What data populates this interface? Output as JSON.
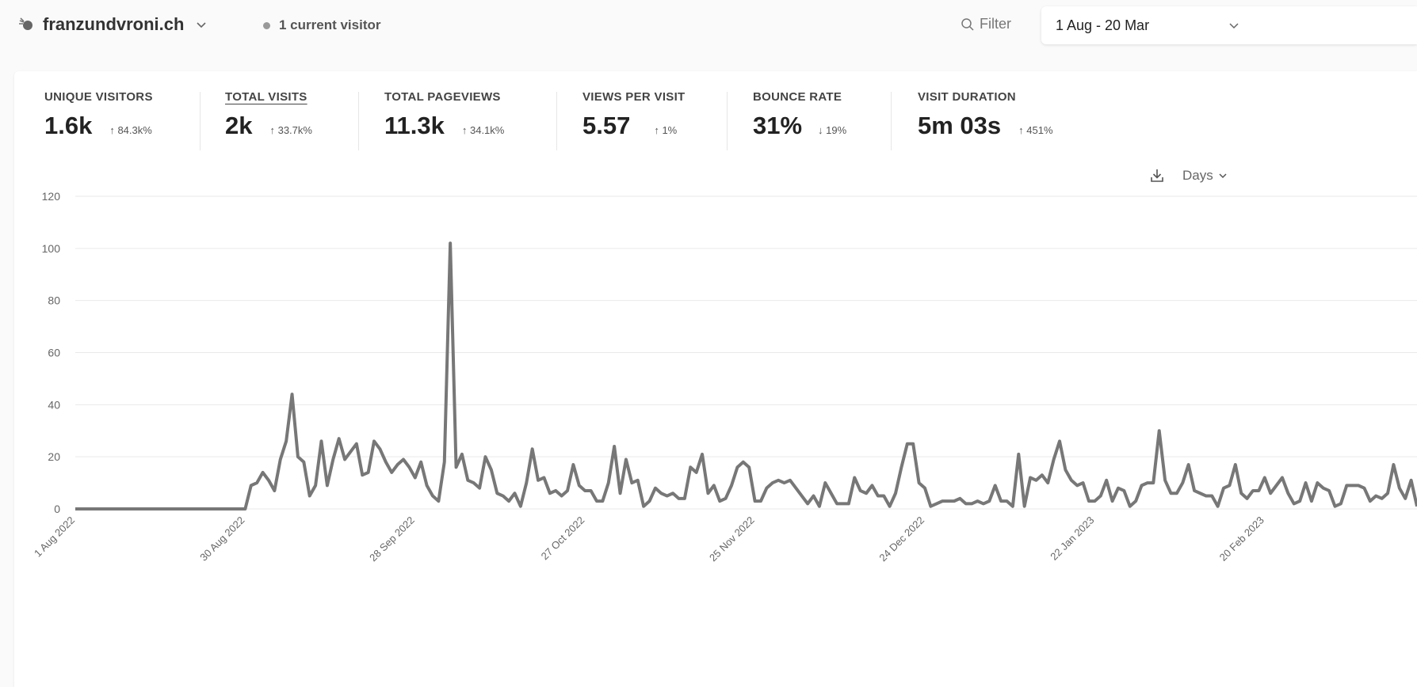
{
  "header": {
    "site_name": "franzundvroni.ch",
    "current_visitors": "1 current visitor",
    "filter_label": "Filter",
    "date_range": "1 Aug - 20 Mar"
  },
  "stats": [
    {
      "label": "UNIQUE VISITORS",
      "value": "1.6k",
      "change": "↑ 84.3k%"
    },
    {
      "label": "TOTAL VISITS",
      "value": "2k",
      "change": "↑ 33.7k%",
      "active": true
    },
    {
      "label": "TOTAL PAGEVIEWS",
      "value": "11.3k",
      "change": "↑ 34.1k%"
    },
    {
      "label": "VIEWS PER VISIT",
      "value": "5.57",
      "change": "↑ 1%"
    },
    {
      "label": "BOUNCE RATE",
      "value": "31%",
      "change": "↓ 19%"
    },
    {
      "label": "VISIT DURATION",
      "value": "5m 03s",
      "change": "↑ 451%"
    }
  ],
  "chart_controls": {
    "interval": "Days"
  },
  "colors": {
    "line": "#777777",
    "grid": "#e9e9e9"
  },
  "chart_data": {
    "type": "line",
    "title": "",
    "xlabel": "",
    "ylabel": "",
    "ylim": [
      0,
      120
    ],
    "yticks": [
      "0",
      "20",
      "40",
      "60",
      "80",
      "100",
      "120"
    ],
    "x_tick_labels": [
      "1 Aug 2022",
      "30 Aug 2022",
      "28 Sep 2022",
      "27 Oct 2022",
      "25 Nov 2022",
      "24 Dec 2022",
      "22 Jan 2023",
      "20 Feb 2023"
    ],
    "grid": true,
    "series": [
      {
        "values": [
          0,
          0,
          0,
          0,
          0,
          0,
          0,
          0,
          0,
          0,
          0,
          0,
          0,
          0,
          0,
          0,
          0,
          0,
          0,
          0,
          0,
          0,
          0,
          0,
          0,
          0,
          0,
          0,
          0,
          0,
          9,
          10,
          14,
          11,
          7,
          19,
          26,
          44,
          20,
          18,
          5,
          9,
          26,
          9,
          19,
          27,
          19,
          22,
          25,
          13,
          14,
          26,
          23,
          18,
          14,
          17,
          19,
          16,
          12,
          18,
          9,
          5,
          3,
          18,
          102,
          16,
          21,
          11,
          10,
          8,
          20,
          15,
          6,
          5,
          3,
          6,
          1,
          10,
          23,
          11,
          12,
          6,
          7,
          5,
          7,
          17,
          9,
          7,
          7,
          3,
          3,
          10,
          24,
          6,
          19,
          10,
          11,
          1,
          3,
          8,
          6,
          5,
          6,
          4,
          4,
          16,
          14,
          21,
          6,
          9,
          3,
          4,
          9,
          16,
          18,
          16,
          3,
          3,
          8,
          10,
          11,
          10,
          11,
          8,
          5,
          2,
          5,
          1,
          10,
          6,
          2,
          2,
          2,
          12,
          7,
          6,
          9,
          5,
          5,
          1,
          6,
          16,
          25,
          25,
          10,
          8,
          1,
          2,
          3,
          3,
          3,
          4,
          2,
          2,
          3,
          2,
          3,
          9,
          3,
          3,
          1,
          21,
          1,
          12,
          11,
          13,
          10,
          19,
          26,
          15,
          11,
          9,
          10,
          3,
          3,
          5,
          11,
          3,
          8,
          7,
          1,
          3,
          9,
          10,
          10,
          30,
          11,
          6,
          6,
          10,
          17,
          7,
          6,
          5,
          5,
          1,
          8,
          9,
          17,
          6,
          4,
          7,
          7,
          12,
          6,
          9,
          12,
          6,
          2,
          3,
          10,
          3,
          10,
          8,
          7,
          1,
          2,
          9,
          9,
          9,
          8,
          3,
          5,
          4,
          6,
          17,
          8,
          4,
          11,
          1
        ]
      }
    ]
  }
}
